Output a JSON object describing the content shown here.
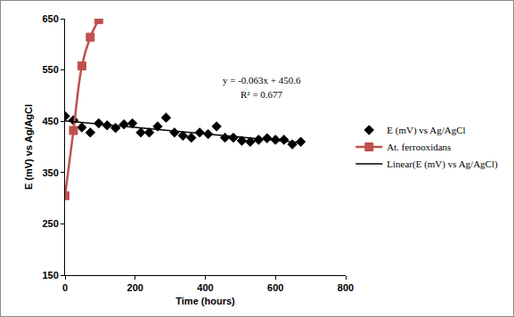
{
  "chart_data": {
    "type": "scatter",
    "x_label": "Time (hours)",
    "y_label": "E (mV) vs Ag/AgCl",
    "xlim": [
      0,
      800
    ],
    "xticks": [
      0,
      200,
      400,
      600,
      800
    ],
    "ylim": [
      150,
      650
    ],
    "yticks": [
      150,
      250,
      350,
      450,
      550,
      650
    ],
    "grid": false,
    "legend": "right",
    "annotations": [
      "y = -0.063x + 450.6",
      "R² = 0.677"
    ],
    "series": [
      {
        "name": "E (mV) vs Ag/AgCl",
        "type": "scatter",
        "color": "#000000",
        "marker": "diamond",
        "line_style": "none",
        "x": [
          0,
          24,
          48,
          72,
          96,
          120,
          144,
          168,
          192,
          216,
          240,
          264,
          288,
          312,
          336,
          360,
          384,
          408,
          432,
          456,
          480,
          504,
          528,
          552,
          576,
          600,
          624,
          648,
          672
        ],
        "values": [
          460,
          452,
          438,
          428,
          446,
          442,
          437,
          444,
          446,
          428,
          428,
          440,
          457,
          428,
          422,
          418,
          428,
          425,
          440,
          418,
          418,
          412,
          410,
          414,
          417,
          414,
          414,
          405,
          410
        ]
      },
      {
        "name": "At. ferrooxidans",
        "type": "line",
        "color": "#c0504d",
        "marker": "square",
        "line_style": "spline",
        "x": [
          0,
          24,
          48,
          72,
          96
        ],
        "values": [
          305,
          432,
          558,
          614,
          648
        ]
      },
      {
        "name": "Linear(E (mV) vs Ag/AgCl)",
        "type": "line",
        "color": "#000000",
        "marker": "none",
        "line_style": "solid",
        "x": [
          0,
          672
        ],
        "values": [
          450.6,
          408.3
        ]
      }
    ]
  }
}
